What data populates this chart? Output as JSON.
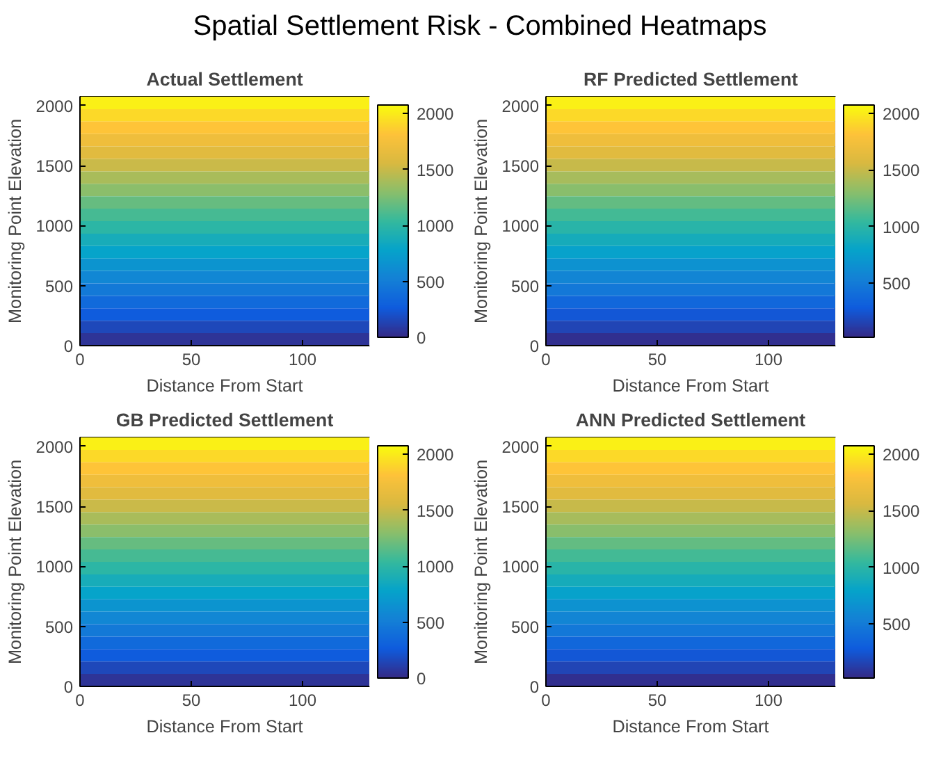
{
  "chart_data": [
    {
      "type": "other",
      "title": "Spatial Settlement Risk - Combined Heatmaps"
    },
    {
      "type": "heatmap",
      "title": "Actual Settlement",
      "xlabel": "Distance From Start",
      "ylabel": "Monitoring Point Elevation",
      "xlim": [
        0,
        130
      ],
      "ylim": [
        0,
        2075
      ],
      "xticks": [
        0,
        50,
        100
      ],
      "yticks": [
        0,
        500,
        1000,
        1500,
        2000
      ],
      "clim": [
        0,
        2075
      ],
      "cticks": [
        0,
        500,
        1000,
        1500,
        2000
      ],
      "cells": [
        [
          2020
        ],
        [
          1920
        ],
        [
          1820
        ],
        [
          1710
        ],
        [
          1610
        ],
        [
          1500
        ],
        [
          1400
        ],
        [
          1300
        ],
        [
          1190
        ],
        [
          1090
        ],
        [
          990
        ],
        [
          880
        ],
        [
          780
        ],
        [
          670
        ],
        [
          570
        ],
        [
          470
        ],
        [
          360
        ],
        [
          260
        ],
        [
          160
        ],
        [
          50
        ]
      ]
    },
    {
      "type": "heatmap",
      "title": "RF Predicted Settlement",
      "xlabel": "Distance From Start",
      "ylabel": "Monitoring Point Elevation",
      "xlim": [
        0,
        130
      ],
      "ylim": [
        0,
        2075
      ],
      "xticks": [
        0,
        50,
        100
      ],
      "yticks": [
        0,
        500,
        1000,
        1500,
        2000
      ],
      "clim": [
        20,
        2075
      ],
      "cticks": [
        500,
        1000,
        1500,
        2000
      ],
      "cells": [
        [
          2020
        ],
        [
          1920
        ],
        [
          1820
        ],
        [
          1710
        ],
        [
          1610
        ],
        [
          1500
        ],
        [
          1400
        ],
        [
          1300
        ],
        [
          1190
        ],
        [
          1090
        ],
        [
          990
        ],
        [
          880
        ],
        [
          780
        ],
        [
          670
        ],
        [
          570
        ],
        [
          470
        ],
        [
          360
        ],
        [
          260
        ],
        [
          160
        ],
        [
          50
        ]
      ]
    },
    {
      "type": "heatmap",
      "title": "GB Predicted Settlement",
      "xlabel": "Distance From Start",
      "ylabel": "Monitoring Point Elevation",
      "xlim": [
        0,
        130
      ],
      "ylim": [
        0,
        2075
      ],
      "xticks": [
        0,
        50,
        100
      ],
      "yticks": [
        0,
        500,
        1000,
        1500,
        2000
      ],
      "clim": [
        0,
        2075
      ],
      "cticks": [
        0,
        500,
        1000,
        1500,
        2000
      ],
      "cells": [
        [
          2020
        ],
        [
          1920
        ],
        [
          1820
        ],
        [
          1710
        ],
        [
          1610
        ],
        [
          1500
        ],
        [
          1400
        ],
        [
          1300
        ],
        [
          1190
        ],
        [
          1090
        ],
        [
          990
        ],
        [
          880
        ],
        [
          780
        ],
        [
          670
        ],
        [
          570
        ],
        [
          470
        ],
        [
          360
        ],
        [
          260
        ],
        [
          160
        ],
        [
          50
        ]
      ]
    },
    {
      "type": "heatmap",
      "title": "ANN Predicted Settlement",
      "xlabel": "Distance From Start",
      "ylabel": "Monitoring Point Elevation",
      "xlim": [
        0,
        130
      ],
      "ylim": [
        0,
        2075
      ],
      "xticks": [
        0,
        50,
        100
      ],
      "yticks": [
        0,
        500,
        1000,
        1500,
        2000
      ],
      "clim": [
        20,
        2075
      ],
      "cticks": [
        500,
        1000,
        1500,
        2000
      ],
      "cells": [
        [
          2020
        ],
        [
          1920
        ],
        [
          1820
        ],
        [
          1710
        ],
        [
          1610
        ],
        [
          1500
        ],
        [
          1400
        ],
        [
          1300
        ],
        [
          1190
        ],
        [
          1090
        ],
        [
          990
        ],
        [
          880
        ],
        [
          780
        ],
        [
          670
        ],
        [
          570
        ],
        [
          470
        ],
        [
          360
        ],
        [
          260
        ],
        [
          160
        ],
        [
          50
        ]
      ]
    }
  ]
}
